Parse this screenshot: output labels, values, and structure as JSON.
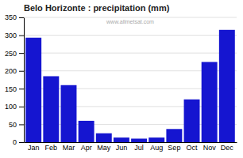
{
  "chart_data": {
    "type": "bar",
    "title": "Belo Horizonte : precipitation (mm)",
    "categories": [
      "Jan",
      "Feb",
      "Mar",
      "Apr",
      "May",
      "Jun",
      "Jul",
      "Aug",
      "Sep",
      "Oct",
      "Nov",
      "Dec"
    ],
    "values": [
      293,
      185,
      160,
      60,
      25,
      13,
      10,
      13,
      37,
      120,
      225,
      315
    ],
    "color": "#1515d0",
    "ylim": [
      0,
      350
    ],
    "yticks": [
      0,
      50,
      100,
      150,
      200,
      250,
      300,
      350
    ],
    "grid": true,
    "annotations": [
      "www.allmetsat.com"
    ]
  }
}
